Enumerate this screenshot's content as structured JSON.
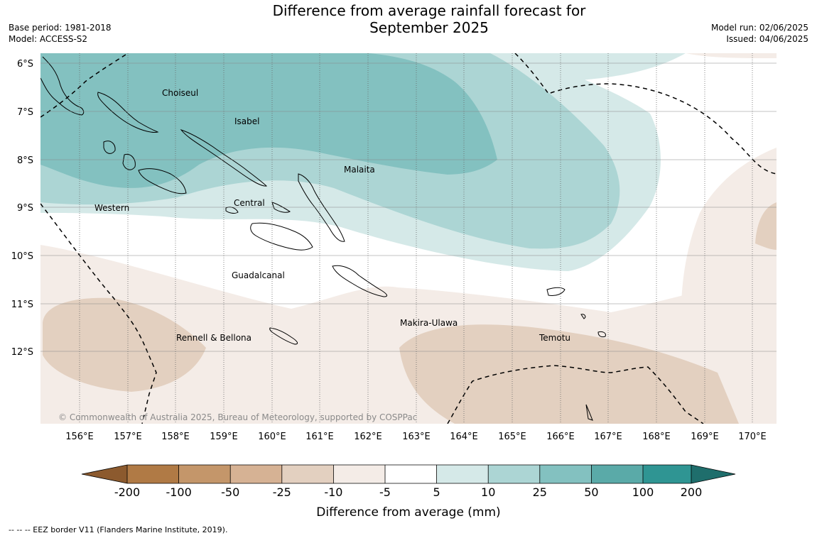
{
  "header": {
    "title_line1": "Difference from average rainfall forecast for",
    "title_line2": "September 2025",
    "base_period": "Base period: 1981-2018",
    "model": "Model: ACCESS-S2",
    "model_run": "Model run: 02/06/2025",
    "issued": "Issued: 04/06/2025"
  },
  "map": {
    "lat_labels": [
      "6°S",
      "7°S",
      "8°S",
      "9°S",
      "10°S",
      "11°S",
      "12°S"
    ],
    "lon_labels": [
      "156°E",
      "157°E",
      "158°E",
      "159°E",
      "160°E",
      "161°E",
      "162°E",
      "163°E",
      "164°E",
      "165°E",
      "166°E",
      "167°E",
      "168°E",
      "169°E",
      "170°E"
    ],
    "place_labels": {
      "choiseul": "Choiseul",
      "isabel": "Isabel",
      "malaita": "Malaita",
      "western": "Western",
      "central": "Central",
      "guadalcanal": "Guadalcanal",
      "makira_ulawa": "Makira-Ulawa",
      "rennell_bellona": "Rennell & Bellona",
      "temotu": "Temotu"
    },
    "copyright": "© Commonwealth of Australia 2025, Bureau of Meteorology, supported by COSPPac"
  },
  "colorbar": {
    "ticks": [
      "-200",
      "-100",
      "-50",
      "-25",
      "-10",
      "-5",
      "5",
      "10",
      "25",
      "50",
      "100",
      "200"
    ],
    "colors": [
      "#8c5a2e",
      "#b07a45",
      "#c4966a",
      "#d6b294",
      "#e3d0c0",
      "#f4ece7",
      "#ffffff",
      "#d5e9e8",
      "#acd5d4",
      "#83c1c0",
      "#5aaaa8",
      "#2f9593",
      "#1f6e6c"
    ],
    "label": "Difference from average (mm)"
  },
  "footer": {
    "eez_note": "--  --  -- EEZ border V11 (Flanders Marine Institute, 2019)."
  }
}
